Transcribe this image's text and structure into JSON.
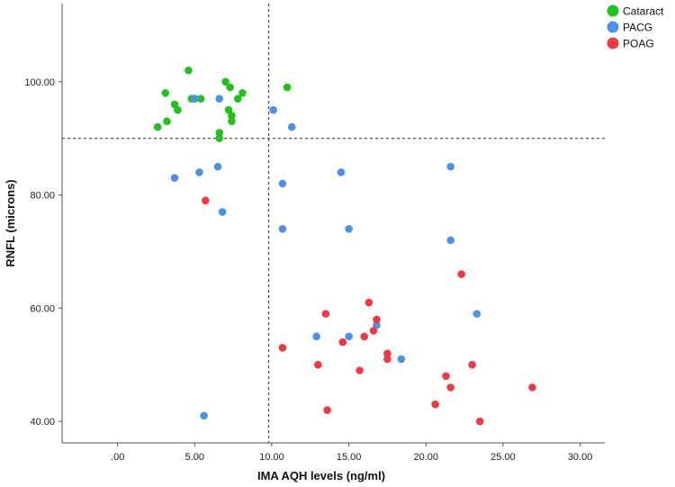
{
  "chart_data": {
    "type": "scatter",
    "title": "",
    "xlabel": "IMA AQH levels (ng/ml)",
    "ylabel": "RNFL (microns)",
    "xlim": [
      -3.6,
      31.6
    ],
    "ylim": [
      36.2,
      113.8
    ],
    "x_ticks": [
      0,
      5,
      10,
      15,
      20,
      25,
      30
    ],
    "x_tick_labels": [
      ".00",
      "5.00",
      "10.00",
      "15.00",
      "20.00",
      "25.00",
      "30.00"
    ],
    "y_ticks": [
      40,
      60,
      80,
      100
    ],
    "y_tick_labels": [
      "40.00",
      "60.00",
      "80.00",
      "100.00"
    ],
    "reference_lines": {
      "x": 9.8,
      "y": 90,
      "style": "dotted"
    },
    "grid": false,
    "legend_position": "top-right",
    "series": [
      {
        "name": "Cataract",
        "color": "#22c11f",
        "points": [
          [
            2.6,
            92
          ],
          [
            3.1,
            98
          ],
          [
            3.2,
            93
          ],
          [
            3.7,
            96
          ],
          [
            3.9,
            95
          ],
          [
            4.6,
            102
          ],
          [
            4.8,
            97
          ],
          [
            5.0,
            97
          ],
          [
            5.4,
            97
          ],
          [
            6.6,
            91
          ],
          [
            6.6,
            90
          ],
          [
            7.0,
            100
          ],
          [
            7.2,
            95
          ],
          [
            7.3,
            99
          ],
          [
            7.4,
            93
          ],
          [
            7.4,
            94
          ],
          [
            7.8,
            97
          ],
          [
            8.1,
            98
          ],
          [
            11.0,
            99
          ]
        ]
      },
      {
        "name": "PACG",
        "color": "#4d90e8",
        "points": [
          [
            3.7,
            83
          ],
          [
            5.0,
            97
          ],
          [
            5.3,
            84
          ],
          [
            5.6,
            41
          ],
          [
            6.5,
            85
          ],
          [
            6.6,
            97
          ],
          [
            6.8,
            77
          ],
          [
            10.1,
            95
          ],
          [
            10.7,
            82
          ],
          [
            10.7,
            74
          ],
          [
            11.3,
            92
          ],
          [
            12.9,
            55
          ],
          [
            14.5,
            84
          ],
          [
            15.0,
            74
          ],
          [
            15.0,
            55
          ],
          [
            16.8,
            57
          ],
          [
            18.4,
            51
          ],
          [
            21.6,
            85
          ],
          [
            21.6,
            72
          ],
          [
            23.3,
            59
          ]
        ]
      },
      {
        "name": "POAG",
        "color": "#ee3a46",
        "points": [
          [
            5.7,
            79
          ],
          [
            10.7,
            53
          ],
          [
            13.0,
            50
          ],
          [
            13.5,
            59
          ],
          [
            13.6,
            42
          ],
          [
            14.6,
            54
          ],
          [
            15.7,
            49
          ],
          [
            16.0,
            55
          ],
          [
            16.3,
            61
          ],
          [
            16.6,
            56
          ],
          [
            16.8,
            58
          ],
          [
            17.5,
            52
          ],
          [
            17.5,
            51
          ],
          [
            20.6,
            43
          ],
          [
            21.3,
            48
          ],
          [
            21.6,
            46
          ],
          [
            22.3,
            66
          ],
          [
            23.0,
            50
          ],
          [
            23.5,
            40
          ],
          [
            26.9,
            46
          ]
        ]
      }
    ]
  }
}
